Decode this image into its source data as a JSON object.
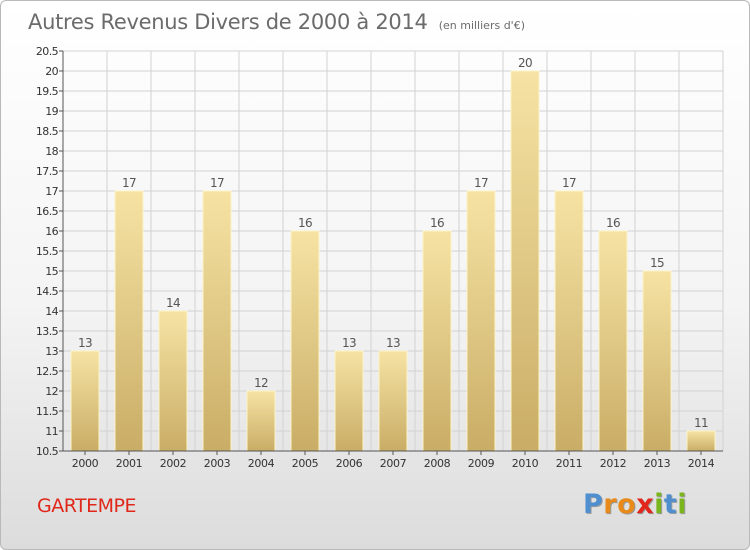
{
  "title": "Autres Revenus Divers de 2000 à 2014",
  "subtitle": "(en milliers d'€)",
  "place": "GARTEMPE",
  "brand": {
    "letters": [
      "P",
      "r",
      "o",
      "x",
      "i",
      "t",
      "i"
    ],
    "colors": [
      "#4f8fd0",
      "#e88a1a",
      "#e88a1a",
      "#e2261c",
      "#7ab51d",
      "#4f8fd0",
      "#7ab51d"
    ]
  },
  "colors": {
    "bar_light": "#f6e3a4",
    "bar_dark": "#c9ad66",
    "bar_edge": "#fdf3c8",
    "grid": "#d2d2d2",
    "axis": "#555555",
    "place": "#e0281a"
  },
  "chart_data": {
    "type": "bar",
    "title": "Autres Revenus Divers de 2000 à 2014",
    "subtitle": "(en milliers d'€)",
    "xlabel": "",
    "ylabel": "",
    "categories": [
      "2000",
      "2001",
      "2002",
      "2003",
      "2004",
      "2005",
      "2006",
      "2007",
      "2008",
      "2009",
      "2010",
      "2011",
      "2012",
      "2013",
      "2014"
    ],
    "values": [
      13,
      17,
      14,
      17,
      12,
      16,
      13,
      13,
      16,
      17,
      20,
      17,
      16,
      15,
      11
    ],
    "data_labels": [
      "13",
      "17",
      "14",
      "17",
      "12",
      "16",
      "13",
      "13",
      "16",
      "17",
      "20",
      "17",
      "16",
      "15",
      "11"
    ],
    "ylim": [
      10.5,
      20.5
    ],
    "yticks": [
      10.5,
      11,
      11.5,
      12,
      12.5,
      13,
      13.5,
      14,
      14.5,
      15,
      15.5,
      16,
      16.5,
      17,
      17.5,
      18,
      18.5,
      19,
      19.5,
      20,
      20.5
    ],
    "ytick_labels": [
      "10.5",
      "11",
      "11.5",
      "12",
      "12.5",
      "13",
      "13.5",
      "14",
      "14.5",
      "15",
      "15.5",
      "16",
      "16.5",
      "17",
      "17.5",
      "18",
      "18.5",
      "19",
      "19.5",
      "20",
      "20.5"
    ],
    "grid": true,
    "legend": "none"
  }
}
